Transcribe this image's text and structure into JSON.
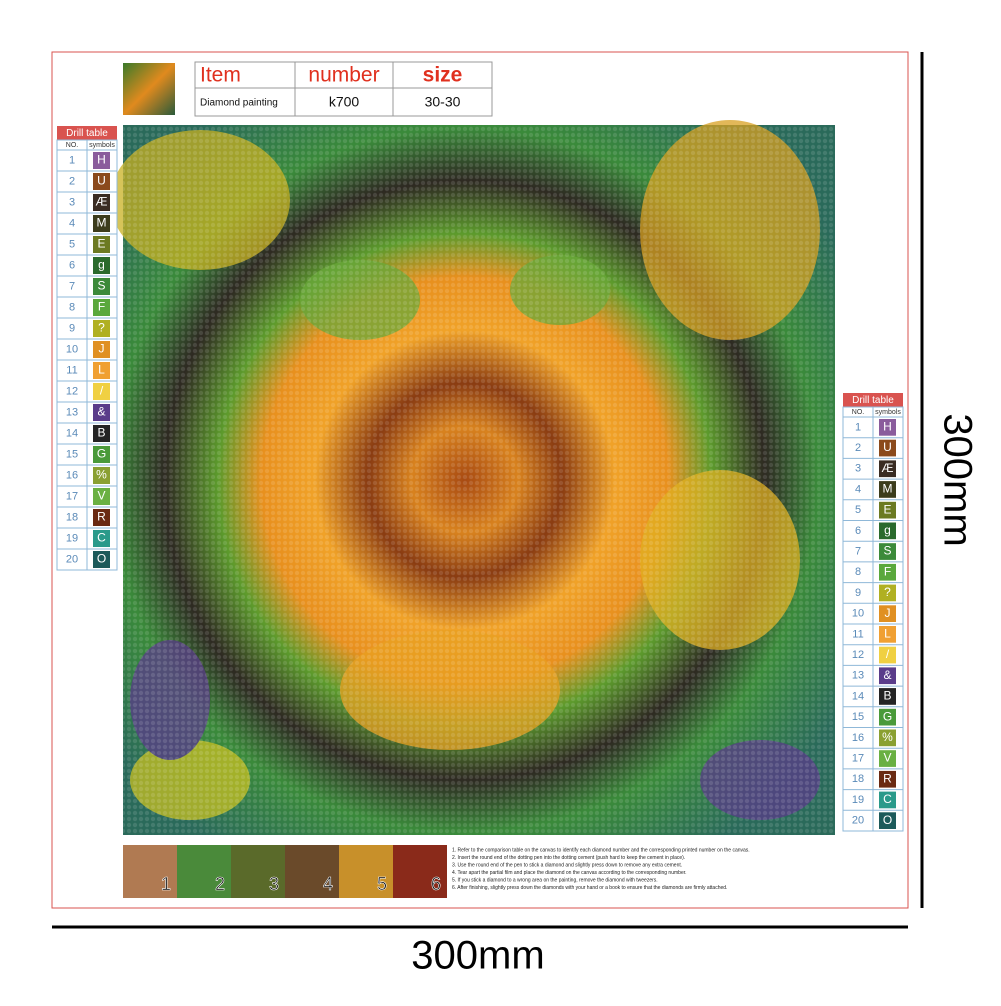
{
  "header": {
    "columns": [
      "Item",
      "number",
      "size"
    ],
    "values": [
      "Diamond painting",
      "k700",
      "30-30"
    ]
  },
  "drill_table": {
    "title": "Drill table",
    "headers": [
      "NO.",
      "symbols"
    ],
    "rows": [
      {
        "no": "1",
        "symbol": "H",
        "color": "#8a5c9c"
      },
      {
        "no": "2",
        "symbol": "U",
        "color": "#8b4a1c"
      },
      {
        "no": "3",
        "symbol": "Æ",
        "color": "#3a2c22"
      },
      {
        "no": "4",
        "symbol": "M",
        "color": "#3c3c1c"
      },
      {
        "no": "5",
        "symbol": "E",
        "color": "#6c7a22"
      },
      {
        "no": "6",
        "symbol": "g",
        "color": "#2a6a2c"
      },
      {
        "no": "7",
        "symbol": "S",
        "color": "#3c8a3a"
      },
      {
        "no": "8",
        "symbol": "F",
        "color": "#5aa83c"
      },
      {
        "no": "9",
        "symbol": "?",
        "color": "#b0b022"
      },
      {
        "no": "10",
        "symbol": "J",
        "color": "#e09022"
      },
      {
        "no": "11",
        "symbol": "L",
        "color": "#f0a032"
      },
      {
        "no": "12",
        "symbol": "/",
        "color": "#f0d042"
      },
      {
        "no": "13",
        "symbol": "&",
        "color": "#5a3c8a"
      },
      {
        "no": "14",
        "symbol": "B",
        "color": "#242424"
      },
      {
        "no": "15",
        "symbol": "G",
        "color": "#4a9a3a"
      },
      {
        "no": "16",
        "symbol": "%",
        "color": "#8aa032"
      },
      {
        "no": "17",
        "symbol": "V",
        "color": "#6ab042"
      },
      {
        "no": "18",
        "symbol": "R",
        "color": "#6a2a12"
      },
      {
        "no": "19",
        "symbol": "C",
        "color": "#2a9a8a"
      },
      {
        "no": "20",
        "symbol": "O",
        "color": "#1c5a5a"
      }
    ]
  },
  "steps": [
    "1",
    "2",
    "3",
    "4",
    "5",
    "6"
  ],
  "instructions": [
    "1. Refer to the comparison table on the canvas to identify each diamond number and the corresponding printed number on the canvas.",
    "2. Insert the round end of the dotting pen into the dotting cement (push hard to keep the cement in place).",
    "3. Use the round end of the pen to stick a diamond and slightly press down to remove any extra cement.",
    "4. Tear apart the partial film and place the diamond on the canvas according to the corresponding number.",
    "5. If you stick a diamond to a wrong area on the painting, remove the diamond with tweezers.",
    "6. After finishing, slightly press down the diamonds with your hand or a book to ensure that the diamonds are firmly attached."
  ],
  "dimensions": {
    "width": "300mm",
    "height": "300mm"
  }
}
